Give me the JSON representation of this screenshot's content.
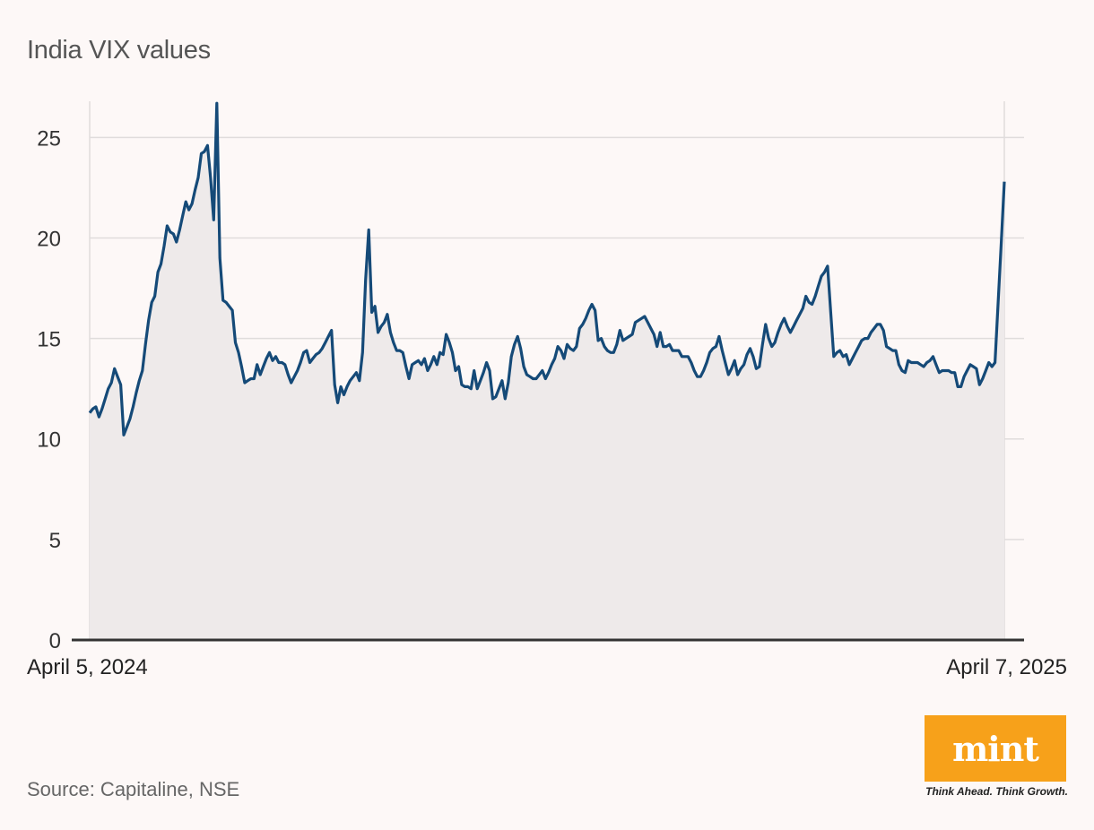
{
  "title": "India VIX values",
  "source": "Source: Capitaline, NSE",
  "logo": {
    "word": "mint",
    "tagline": "Think Ahead. Think Growth."
  },
  "colors": {
    "line": "#154a78",
    "area": "#eeeaea",
    "grid": "#e0dcdc",
    "axis": "#333333",
    "logo_bg": "#f7a11a"
  },
  "chart_data": {
    "type": "area",
    "xlabel": "",
    "ylabel": "",
    "x_start_label": "April 5, 2024",
    "x_end_label": "April 7, 2025",
    "ylim": [
      0,
      26.8
    ],
    "yticks": [
      0,
      5,
      10,
      15,
      20,
      25
    ],
    "ytick_labels": [
      "0",
      "5",
      "10",
      "15",
      "20",
      "25"
    ],
    "grid": true,
    "series": [
      {
        "values": [
          11.3,
          11.5,
          11.6,
          11.1,
          11.5,
          12.0,
          12.5,
          12.8,
          13.5,
          13.1,
          12.7,
          10.2,
          10.6,
          11.0,
          11.6,
          12.3,
          12.9,
          13.4,
          14.7,
          15.9,
          16.8,
          17.1,
          18.3,
          18.7,
          19.6,
          20.6,
          20.3,
          20.2,
          19.8,
          20.4,
          21.1,
          21.8,
          21.4,
          21.7,
          22.4,
          23.0,
          24.2,
          24.3,
          24.6,
          23.0,
          20.9,
          26.7,
          19.0,
          16.9,
          16.8,
          16.6,
          16.4,
          14.8,
          14.3,
          13.6,
          12.8,
          12.9,
          13.0,
          13.0,
          13.7,
          13.2,
          13.6,
          14.0,
          14.3,
          13.9,
          14.1,
          13.8,
          13.8,
          13.7,
          13.2,
          12.8,
          13.1,
          13.4,
          13.8,
          14.3,
          14.4,
          13.8,
          14.0,
          14.2,
          14.3,
          14.5,
          14.8,
          15.1,
          15.4,
          12.7,
          11.8,
          12.6,
          12.2,
          12.6,
          12.9,
          13.1,
          13.3,
          12.9,
          14.3,
          17.9,
          20.4,
          16.3,
          16.6,
          15.3,
          15.6,
          15.8,
          16.2,
          15.3,
          14.8,
          14.4,
          14.4,
          14.3,
          13.6,
          13.0,
          13.7,
          13.8,
          13.9,
          13.7,
          14.0,
          13.4,
          13.7,
          14.1,
          13.7,
          14.3,
          14.2,
          15.2,
          14.8,
          14.3,
          13.4,
          13.6,
          12.7,
          12.6,
          12.6,
          12.5,
          13.4,
          12.5,
          12.9,
          13.3,
          13.8,
          13.4,
          12.0,
          12.1,
          12.5,
          12.9,
          12.0,
          12.8,
          14.1,
          14.7,
          15.1,
          14.5,
          13.6,
          13.2,
          13.1,
          13.0,
          13.0,
          13.2,
          13.4,
          13.0,
          13.3,
          13.7,
          14.0,
          14.6,
          14.4,
          14.0,
          14.7,
          14.5,
          14.4,
          14.6,
          15.5,
          15.7,
          16.0,
          16.4,
          16.7,
          16.4,
          14.9,
          15.0,
          14.6,
          14.4,
          14.3,
          14.3,
          14.7,
          15.4,
          14.9,
          15.0,
          15.1,
          15.2,
          15.8,
          15.9,
          16.0,
          16.1,
          15.8,
          15.5,
          15.2,
          14.6,
          15.3,
          14.6,
          14.6,
          14.7,
          14.4,
          14.4,
          14.4,
          14.1,
          14.1,
          14.1,
          13.8,
          13.4,
          13.1,
          13.1,
          13.4,
          13.8,
          14.3,
          14.5,
          14.6,
          15.1,
          14.4,
          13.8,
          13.2,
          13.5,
          13.9,
          13.2,
          13.5,
          13.7,
          14.2,
          14.5,
          14.1,
          13.5,
          13.6,
          14.7,
          15.7,
          15.0,
          14.6,
          14.8,
          15.3,
          15.7,
          16.0,
          15.6,
          15.3,
          15.6,
          15.9,
          16.2,
          16.5,
          17.1,
          16.8,
          16.7,
          17.1,
          17.6,
          18.1,
          18.3,
          18.6,
          16.3,
          14.1,
          14.3,
          14.4,
          14.1,
          14.2,
          13.7,
          14.0,
          14.3,
          14.6,
          14.9,
          15.0,
          15.0,
          15.3,
          15.5,
          15.7,
          15.7,
          15.4,
          14.6,
          14.5,
          14.4,
          14.4,
          13.7,
          13.4,
          13.3,
          13.9,
          13.8,
          13.8,
          13.8,
          13.7,
          13.6,
          13.8,
          13.9,
          14.1,
          13.7,
          13.3,
          13.4,
          13.4,
          13.4,
          13.3,
          13.3,
          12.6,
          12.6,
          13.1,
          13.4,
          13.7,
          13.6,
          13.5,
          12.7,
          13.0,
          13.4,
          13.8,
          13.6,
          13.8,
          16.8,
          19.7,
          22.8
        ]
      }
    ]
  }
}
